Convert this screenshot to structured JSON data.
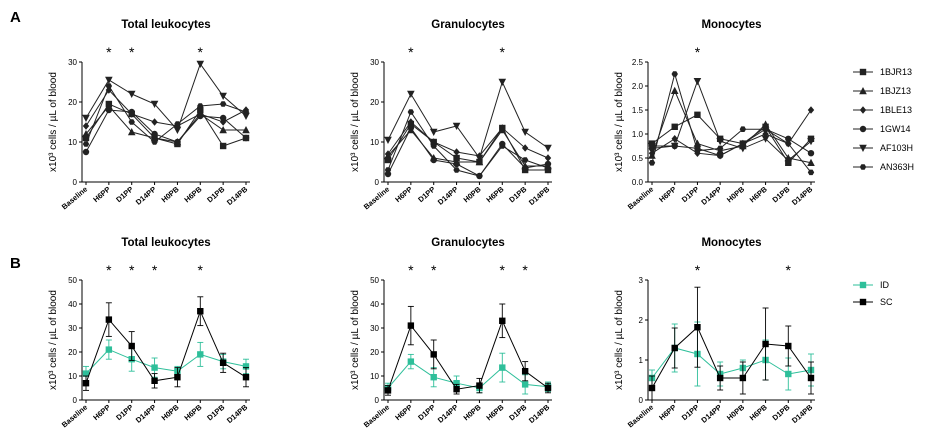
{
  "figure": {
    "panel_letters": [
      "A",
      "B"
    ],
    "legend_A": {
      "items": [
        {
          "label": "1BJR13",
          "marker": "square"
        },
        {
          "label": "1BJZ13",
          "marker": "triangle-up"
        },
        {
          "label": "1BLE13",
          "marker": "diamond"
        },
        {
          "label": "1GW14",
          "marker": "circle"
        },
        {
          "label": "AF103H",
          "marker": "triangle-down"
        },
        {
          "label": "AN363H",
          "marker": "hexagon"
        }
      ]
    },
    "legend_B": {
      "items": [
        {
          "label": "ID",
          "color": "#2ebf9a"
        },
        {
          "label": "SC",
          "color": "#000000"
        }
      ]
    }
  },
  "chart_data": [
    {
      "type": "line",
      "panel": "A",
      "title": "Total leukocytes",
      "ylabel": "x10³ cells / µL of blood",
      "ylim": [
        0,
        30
      ],
      "yticks": [
        "0",
        "10",
        "20",
        "30"
      ],
      "categories": [
        "Baseline",
        "H6PP",
        "D1PP",
        "D14PP",
        "H0PB",
        "H6PB",
        "D1PB",
        "D14PB"
      ],
      "significance_stars": [
        "H6PP",
        "D1PP",
        "H6PB"
      ],
      "series": [
        {
          "name": "1BJR13",
          "values": [
            11,
            19.5,
            17,
            11,
            9.5,
            18,
            9,
            11
          ]
        },
        {
          "name": "1BJZ13",
          "values": [
            12,
            19,
            12.5,
            11,
            10,
            17,
            13,
            13
          ]
        },
        {
          "name": "1BLE13",
          "values": [
            14,
            23,
            17,
            15,
            14,
            17,
            15,
            18
          ]
        },
        {
          "name": "1GW14",
          "values": [
            7.5,
            18,
            17.5,
            12,
            10,
            16.5,
            16,
            11
          ]
        },
        {
          "name": "AF103H",
          "values": [
            16,
            25.5,
            22,
            19.5,
            13,
            29.5,
            21.5,
            16.5
          ]
        },
        {
          "name": "AN363H",
          "values": [
            9.5,
            24,
            15,
            10,
            14.5,
            19,
            19.5,
            17.5
          ]
        }
      ]
    },
    {
      "type": "line",
      "panel": "A",
      "title": "Granulocytes",
      "ylabel": "x10³ cells / µL of blood",
      "ylim": [
        0,
        30
      ],
      "yticks": [
        "0",
        "10",
        "20",
        "30"
      ],
      "categories": [
        "Baseline",
        "H6PP",
        "D1PP",
        "D14PP",
        "H0PB",
        "H6PB",
        "D1PB",
        "D14PB"
      ],
      "significance_stars": [
        "H6PP",
        "H6PB"
      ],
      "series": [
        {
          "name": "1BJR13",
          "values": [
            5.5,
            14.5,
            10,
            6,
            5,
            13.5,
            3,
            3
          ]
        },
        {
          "name": "1BJZ13",
          "values": [
            6.5,
            13,
            6,
            5,
            5,
            13,
            4,
            4
          ]
        },
        {
          "name": "1BLE13",
          "values": [
            7,
            15,
            10,
            7.5,
            6.5,
            13.5,
            8.5,
            6
          ]
        },
        {
          "name": "1GW14",
          "values": [
            2,
            13.5,
            5.5,
            4.5,
            1.5,
            9.5,
            3.5,
            4.5
          ]
        },
        {
          "name": "AF103H",
          "values": [
            10.5,
            22,
            12.5,
            14,
            6,
            25,
            12.5,
            8.5
          ]
        },
        {
          "name": "AN363H",
          "values": [
            3,
            17.5,
            9,
            3,
            1.5,
            9,
            5.5,
            3.5
          ]
        }
      ]
    },
    {
      "type": "line",
      "panel": "A",
      "title": "Monocytes",
      "ylabel": "x10³ cells / µL of blood",
      "ylim": [
        0,
        2.5
      ],
      "yticks": [
        "0.0",
        "0.5",
        "1.0",
        "1.5",
        "2.0",
        "2.5"
      ],
      "categories": [
        "Baseline",
        "H6PP",
        "D1PP",
        "D14PP",
        "H0PB",
        "H6PB",
        "D1PB",
        "D14PB"
      ],
      "significance_stars": [
        "D1PP"
      ],
      "series": [
        {
          "name": "1BJR13",
          "values": [
            0.8,
            1.15,
            1.4,
            0.9,
            0.8,
            1.15,
            0.4,
            0.9
          ]
        },
        {
          "name": "1BJZ13",
          "values": [
            0.55,
            1.9,
            0.8,
            0.65,
            0.75,
            1.2,
            0.5,
            0.4
          ]
        },
        {
          "name": "1BLE13",
          "values": [
            0.6,
            0.9,
            0.6,
            0.55,
            0.8,
            1.0,
            0.8,
            1.5
          ]
        },
        {
          "name": "1GW14",
          "values": [
            0.7,
            0.75,
            0.7,
            0.55,
            0.8,
            1.1,
            0.9,
            0.6
          ]
        },
        {
          "name": "AF103H",
          "values": [
            0.75,
            0.75,
            2.1,
            0.85,
            0.7,
            0.9,
            0.45,
            0.85
          ]
        },
        {
          "name": "AN363H",
          "values": [
            0.4,
            2.25,
            0.65,
            0.7,
            1.1,
            1.1,
            0.8,
            0.2
          ]
        }
      ]
    },
    {
      "type": "line",
      "panel": "B",
      "title": "Total leukocytes",
      "ylabel": "x10³ cells / µL of blood",
      "ylim": [
        0,
        50
      ],
      "yticks": [
        "0",
        "10",
        "20",
        "30",
        "40",
        "50"
      ],
      "categories": [
        "Baseline",
        "H6PP",
        "D1PP",
        "D14PP",
        "H0PB",
        "H6PB",
        "D1PB",
        "D14PB"
      ],
      "significance_stars": [
        "H6PP",
        "D1PP",
        "D14PP",
        "H6PB"
      ],
      "series": [
        {
          "name": "ID",
          "values": [
            11,
            21,
            17,
            13.5,
            12,
            19,
            16,
            14
          ],
          "errors": [
            3,
            4,
            5,
            4,
            2,
            5,
            3,
            3
          ]
        },
        {
          "name": "SC",
          "values": [
            7,
            33.5,
            22.5,
            8,
            9.5,
            37,
            15.5,
            9.5
          ],
          "errors": [
            3,
            7,
            6,
            3,
            4,
            6,
            4,
            4
          ]
        }
      ]
    },
    {
      "type": "line",
      "panel": "B",
      "title": "Granulocytes",
      "ylabel": "x10³ cells / µL of blood",
      "ylim": [
        0,
        50
      ],
      "yticks": [
        "0",
        "10",
        "20",
        "30",
        "40",
        "50"
      ],
      "categories": [
        "Baseline",
        "H6PP",
        "D1PP",
        "D14PP",
        "H0PB",
        "H6PB",
        "D1PB",
        "D14PB"
      ],
      "significance_stars": [
        "H6PP",
        "D1PP",
        "H6PB",
        "D1PB"
      ],
      "series": [
        {
          "name": "ID",
          "values": [
            5,
            16,
            9.5,
            7,
            5,
            13.5,
            6.5,
            5.5
          ],
          "errors": [
            2,
            3,
            4,
            3,
            2,
            6,
            4,
            2
          ]
        },
        {
          "name": "SC",
          "values": [
            4,
            31,
            19,
            4.5,
            6,
            33,
            12,
            5
          ],
          "errors": [
            2,
            8,
            6,
            2,
            3,
            7,
            4,
            2
          ]
        }
      ]
    },
    {
      "type": "line",
      "panel": "B",
      "title": "Monocytes",
      "ylabel": "x10³ cells / µL of blood",
      "ylim": [
        0,
        3
      ],
      "yticks": [
        "0",
        "1",
        "2",
        "3"
      ],
      "categories": [
        "Baseline",
        "H6PP",
        "D1PP",
        "D14PP",
        "H0PB",
        "H6PB",
        "D1PB",
        "D14PB"
      ],
      "significance_stars": [
        "D1PP",
        "D1PB"
      ],
      "series": [
        {
          "name": "ID",
          "values": [
            0.55,
            1.3,
            1.15,
            0.65,
            0.8,
            1.0,
            0.65,
            0.75
          ],
          "errors": [
            0.2,
            0.6,
            0.8,
            0.3,
            0.2,
            0.5,
            0.4,
            0.4
          ]
        },
        {
          "name": "SC",
          "values": [
            0.3,
            1.3,
            1.82,
            0.55,
            0.55,
            1.4,
            1.35,
            0.55
          ],
          "errors": [
            0.3,
            0.5,
            1.0,
            0.3,
            0.4,
            0.9,
            0.5,
            0.4
          ]
        }
      ]
    }
  ]
}
